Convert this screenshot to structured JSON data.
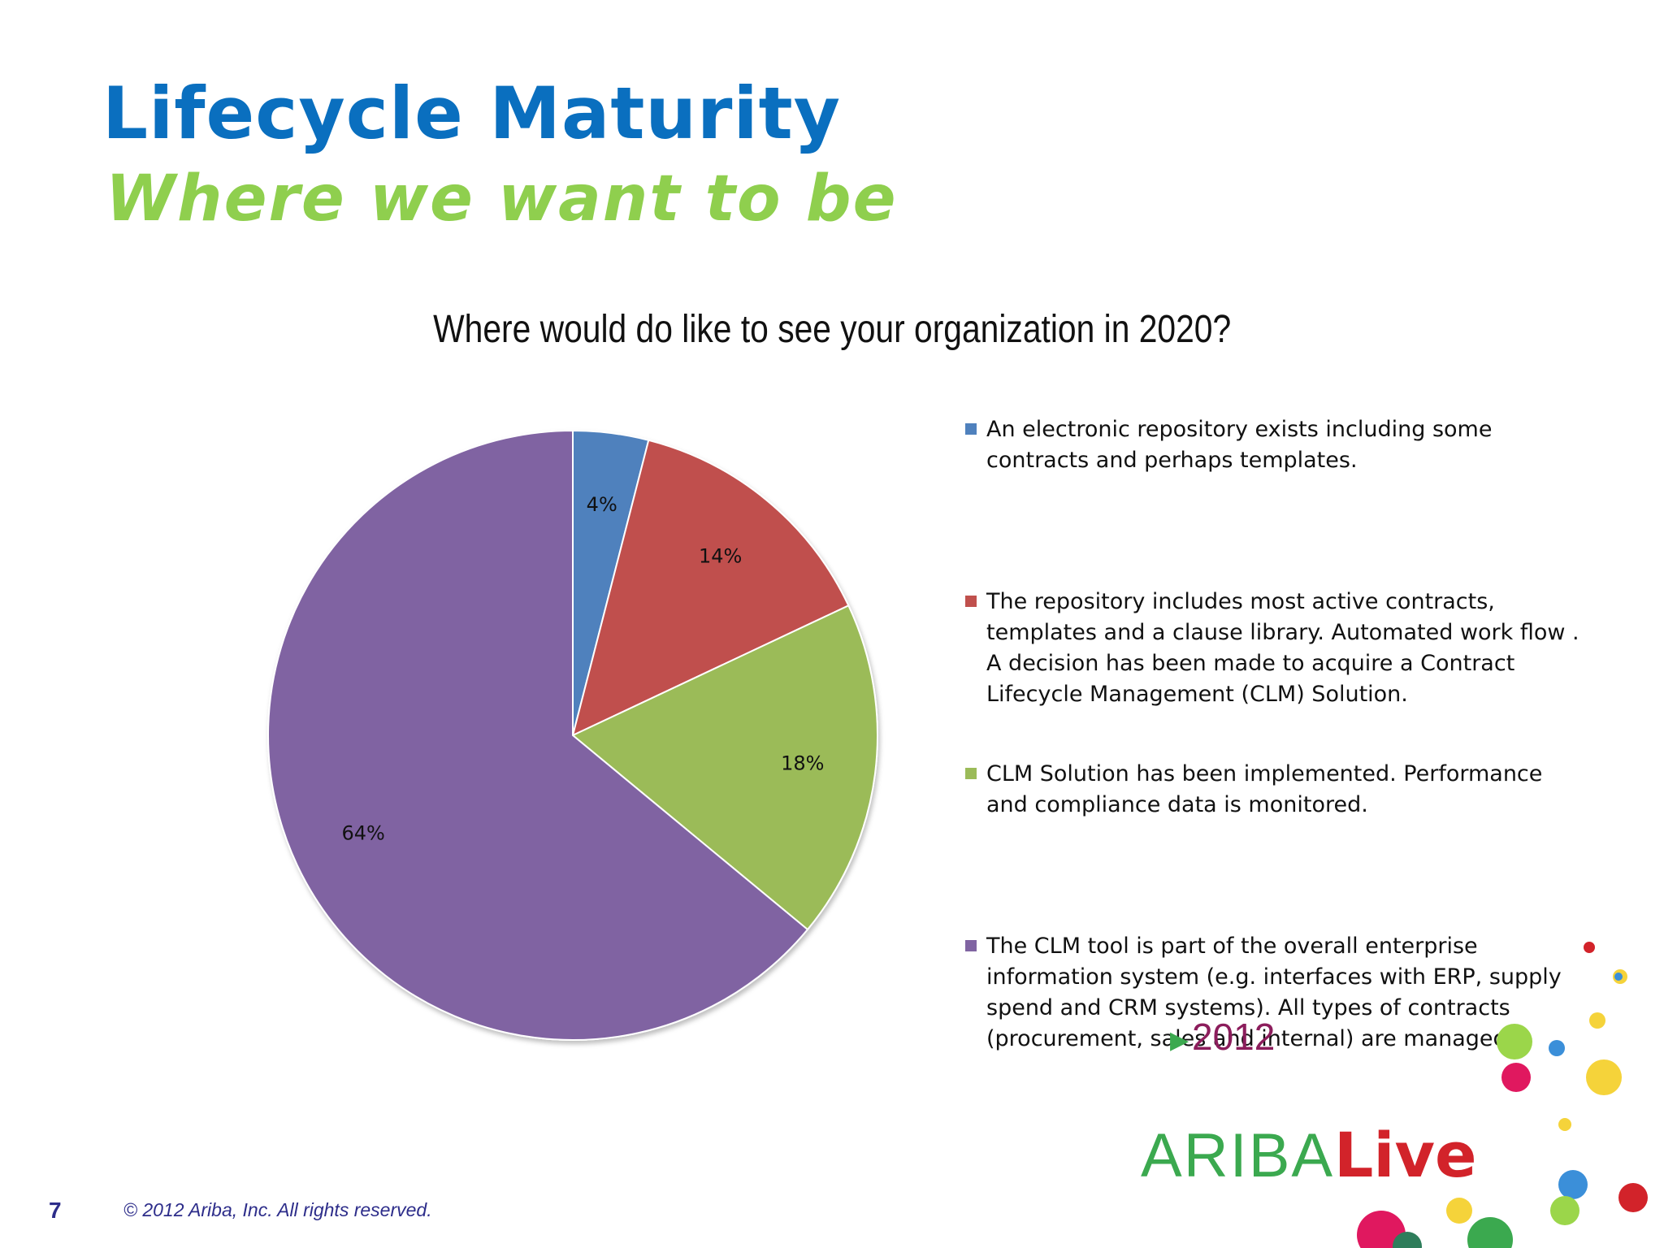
{
  "slide": {
    "title": "Lifecycle Maturity",
    "subtitle": "Where we want to be",
    "page_number": "7",
    "copyright": "© 2012 Ariba, Inc. All rights reserved."
  },
  "logo": {
    "brand_a": "ARIBA",
    "brand_b": "Live",
    "year": "2012"
  },
  "colors": {
    "title": "#0a6fbf",
    "subtitle": "#8fcf4e",
    "series": [
      "#4f81bd",
      "#c0504d",
      "#9bbb59",
      "#8064a2"
    ]
  },
  "chart_data": {
    "type": "pie",
    "title": "Where would do like to see your organization in 2020?",
    "legend_position": "right",
    "slices": [
      {
        "label": "An electronic repository exists including some contracts and perhaps templates.",
        "value": 4,
        "display": "4%",
        "color": "#4f81bd"
      },
      {
        "label": "The repository includes most active contracts, templates and a clause library. Automated work flow . A decision has been made to acquire a Contract Lifecycle Management (CLM) Solution.",
        "value": 14,
        "display": "14%",
        "color": "#c0504d"
      },
      {
        "label": "CLM Solution has been implemented.  Performance and compliance data is monitored.",
        "value": 18,
        "display": "18%",
        "color": "#9bbb59"
      },
      {
        "label": "The CLM tool is part of the overall enterprise information system (e.g. interfaces with ERP, supply spend and CRM systems).  All types of contracts (procurement, sales and internal) are managed.",
        "value": 64,
        "display": "64%",
        "color": "#8064a2"
      }
    ]
  }
}
